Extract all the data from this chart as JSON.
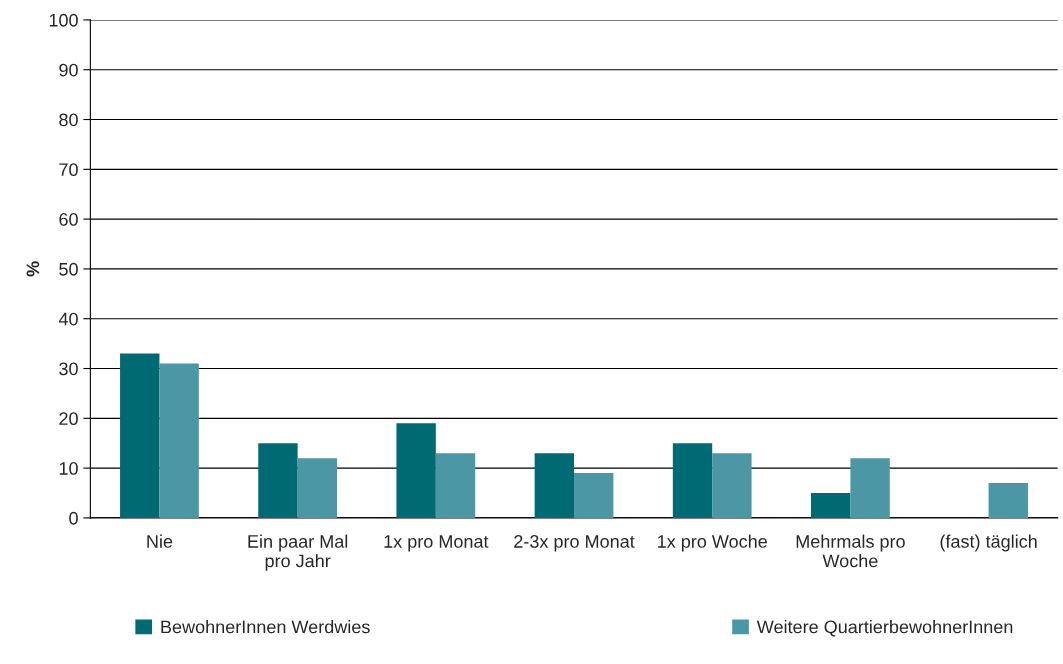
{
  "chart_data": {
    "type": "bar",
    "ylabel": "%",
    "categories": [
      "Nie",
      "Ein paar Mal\npro Jahr",
      "1x pro Monat",
      "2-3x pro Monat",
      "1x pro Woche",
      "Mehrmals pro\nWoche",
      "(fast) täglich"
    ],
    "series": [
      {
        "name": "BewohnerInnen Werdwies",
        "color": "#006a72",
        "values": [
          33,
          15,
          19,
          13,
          15,
          5,
          null
        ]
      },
      {
        "name": "Weitere QuartierbewohnerInnen",
        "color": "#4b97a6",
        "values": [
          31,
          12,
          13,
          9,
          13,
          12,
          7
        ]
      }
    ],
    "ylim": [
      0,
      100
    ],
    "yticks": [
      0,
      10,
      20,
      30,
      40,
      50,
      60,
      70,
      80,
      90,
      100
    ],
    "grid": "y",
    "legend": "bottom"
  }
}
